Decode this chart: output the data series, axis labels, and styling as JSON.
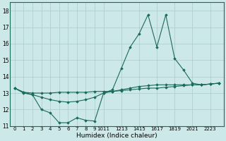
{
  "xlabel": "Humidex (Indice chaleur)",
  "xlim": [
    -0.5,
    23.5
  ],
  "ylim": [
    11,
    18.5
  ],
  "yticks": [
    11,
    12,
    13,
    14,
    15,
    16,
    17,
    18
  ],
  "xtick_labels": [
    "0",
    "1",
    "2",
    "3",
    "4",
    "5",
    "6",
    "7",
    "8",
    "9",
    "1011",
    "1213",
    "1415",
    "1617",
    "1819",
    "2021",
    "2223"
  ],
  "background_color": "#cce8e8",
  "grid_color": "#aacccc",
  "line_color": "#1a6b5a",
  "series": [
    [
      13.3,
      13.05,
      12.9,
      12.0,
      11.8,
      11.2,
      11.2,
      11.5,
      11.35,
      11.3,
      13.0,
      13.2,
      14.5,
      15.8,
      16.6,
      17.75,
      15.8,
      17.75,
      15.1,
      14.4,
      13.6,
      13.5,
      13.55,
      13.6
    ],
    [
      13.3,
      13.05,
      13.0,
      13.0,
      13.0,
      13.05,
      13.05,
      13.05,
      13.05,
      13.1,
      13.1,
      13.1,
      13.15,
      13.2,
      13.25,
      13.3,
      13.3,
      13.35,
      13.4,
      13.45,
      13.5,
      13.5,
      13.55,
      13.6
    ],
    [
      13.3,
      13.0,
      12.9,
      12.75,
      12.6,
      12.5,
      12.45,
      12.5,
      12.6,
      12.75,
      13.0,
      13.1,
      13.2,
      13.3,
      13.4,
      13.45,
      13.5,
      13.5,
      13.5,
      13.5,
      13.5,
      13.5,
      13.55,
      13.6
    ]
  ]
}
